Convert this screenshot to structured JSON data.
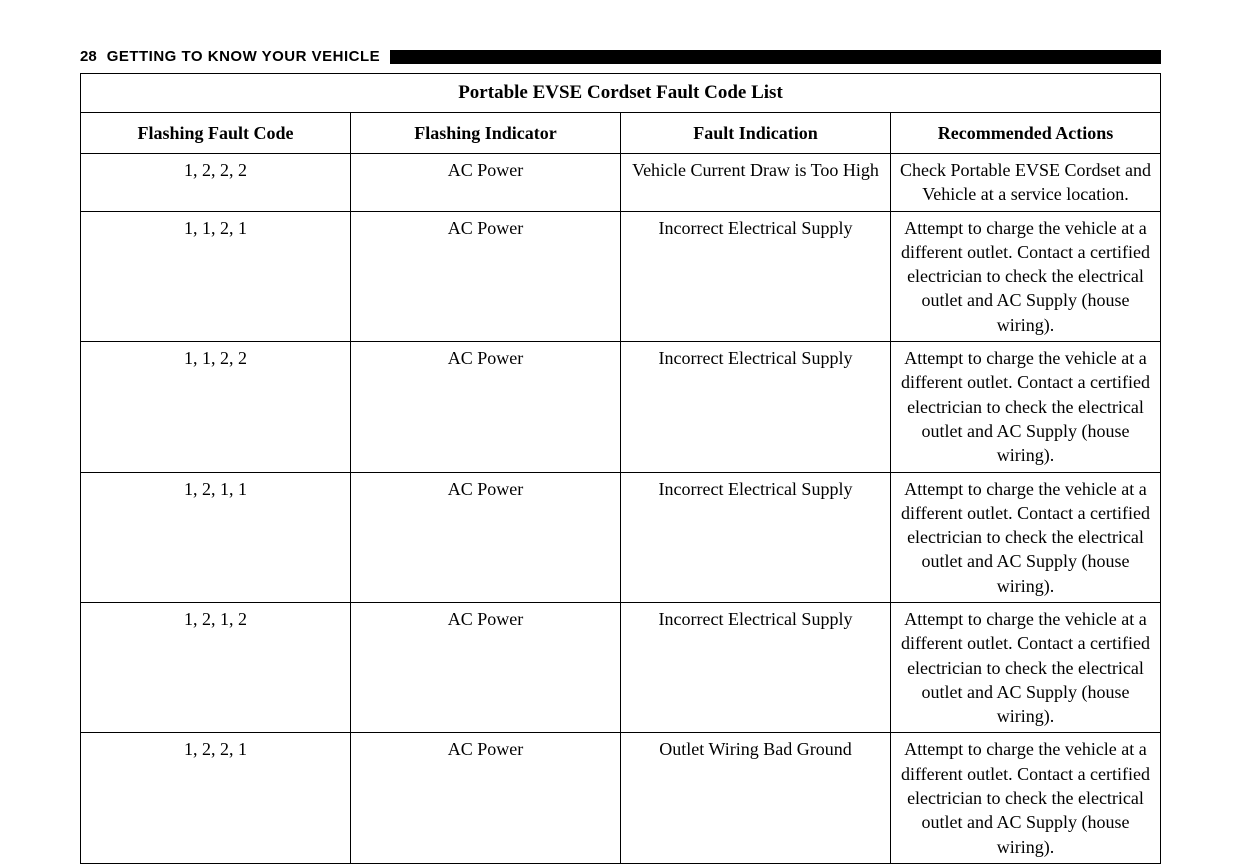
{
  "page": {
    "number": "28",
    "section_header": "GETTING TO KNOW YOUR VEHICLE"
  },
  "table": {
    "title": "Portable EVSE Cordset Fault Code List",
    "columns": {
      "code": "Flashing Fault Code",
      "indicator": "Flashing Indicator",
      "fault": "Fault Indication",
      "actions": "Recommended Actions"
    },
    "rows": [
      {
        "code": "1, 2, 2, 2",
        "indicator": "AC Power",
        "fault": "Vehicle Current Draw is Too High",
        "actions": "Check Portable EVSE Cordset and Vehicle at a service location."
      },
      {
        "code": "1, 1, 2, 1",
        "indicator": "AC Power",
        "fault": "Incorrect Electrical Supply",
        "actions": "Attempt to charge the vehicle at a different outlet. Contact a certified electrician to check the electrical outlet and AC Supply (house wiring)."
      },
      {
        "code": "1, 1, 2, 2",
        "indicator": "AC Power",
        "fault": "Incorrect Electrical Supply",
        "actions": "Attempt to charge the vehicle at a different outlet. Contact a certified electrician to check the electrical outlet and AC Supply (house wiring)."
      },
      {
        "code": "1, 2, 1, 1",
        "indicator": "AC Power",
        "fault": "Incorrect Electrical Supply",
        "actions": "Attempt to charge the vehicle at a different outlet. Contact a certified electrician to check the electrical outlet and AC Supply (house wiring)."
      },
      {
        "code": "1, 2, 1, 2",
        "indicator": "AC Power",
        "fault": "Incorrect Electrical Supply",
        "actions": "Attempt to charge the vehicle at a different outlet. Contact a certified electrician to check the electrical outlet and AC Supply (house wiring)."
      },
      {
        "code": "1, 2, 2, 1",
        "indicator": "AC Power",
        "fault": "Outlet Wiring Bad Ground",
        "actions": "Attempt to charge the vehicle at a different outlet. Contact a certified electrician to check the electrical outlet and AC Supply (house wiring)."
      }
    ]
  }
}
